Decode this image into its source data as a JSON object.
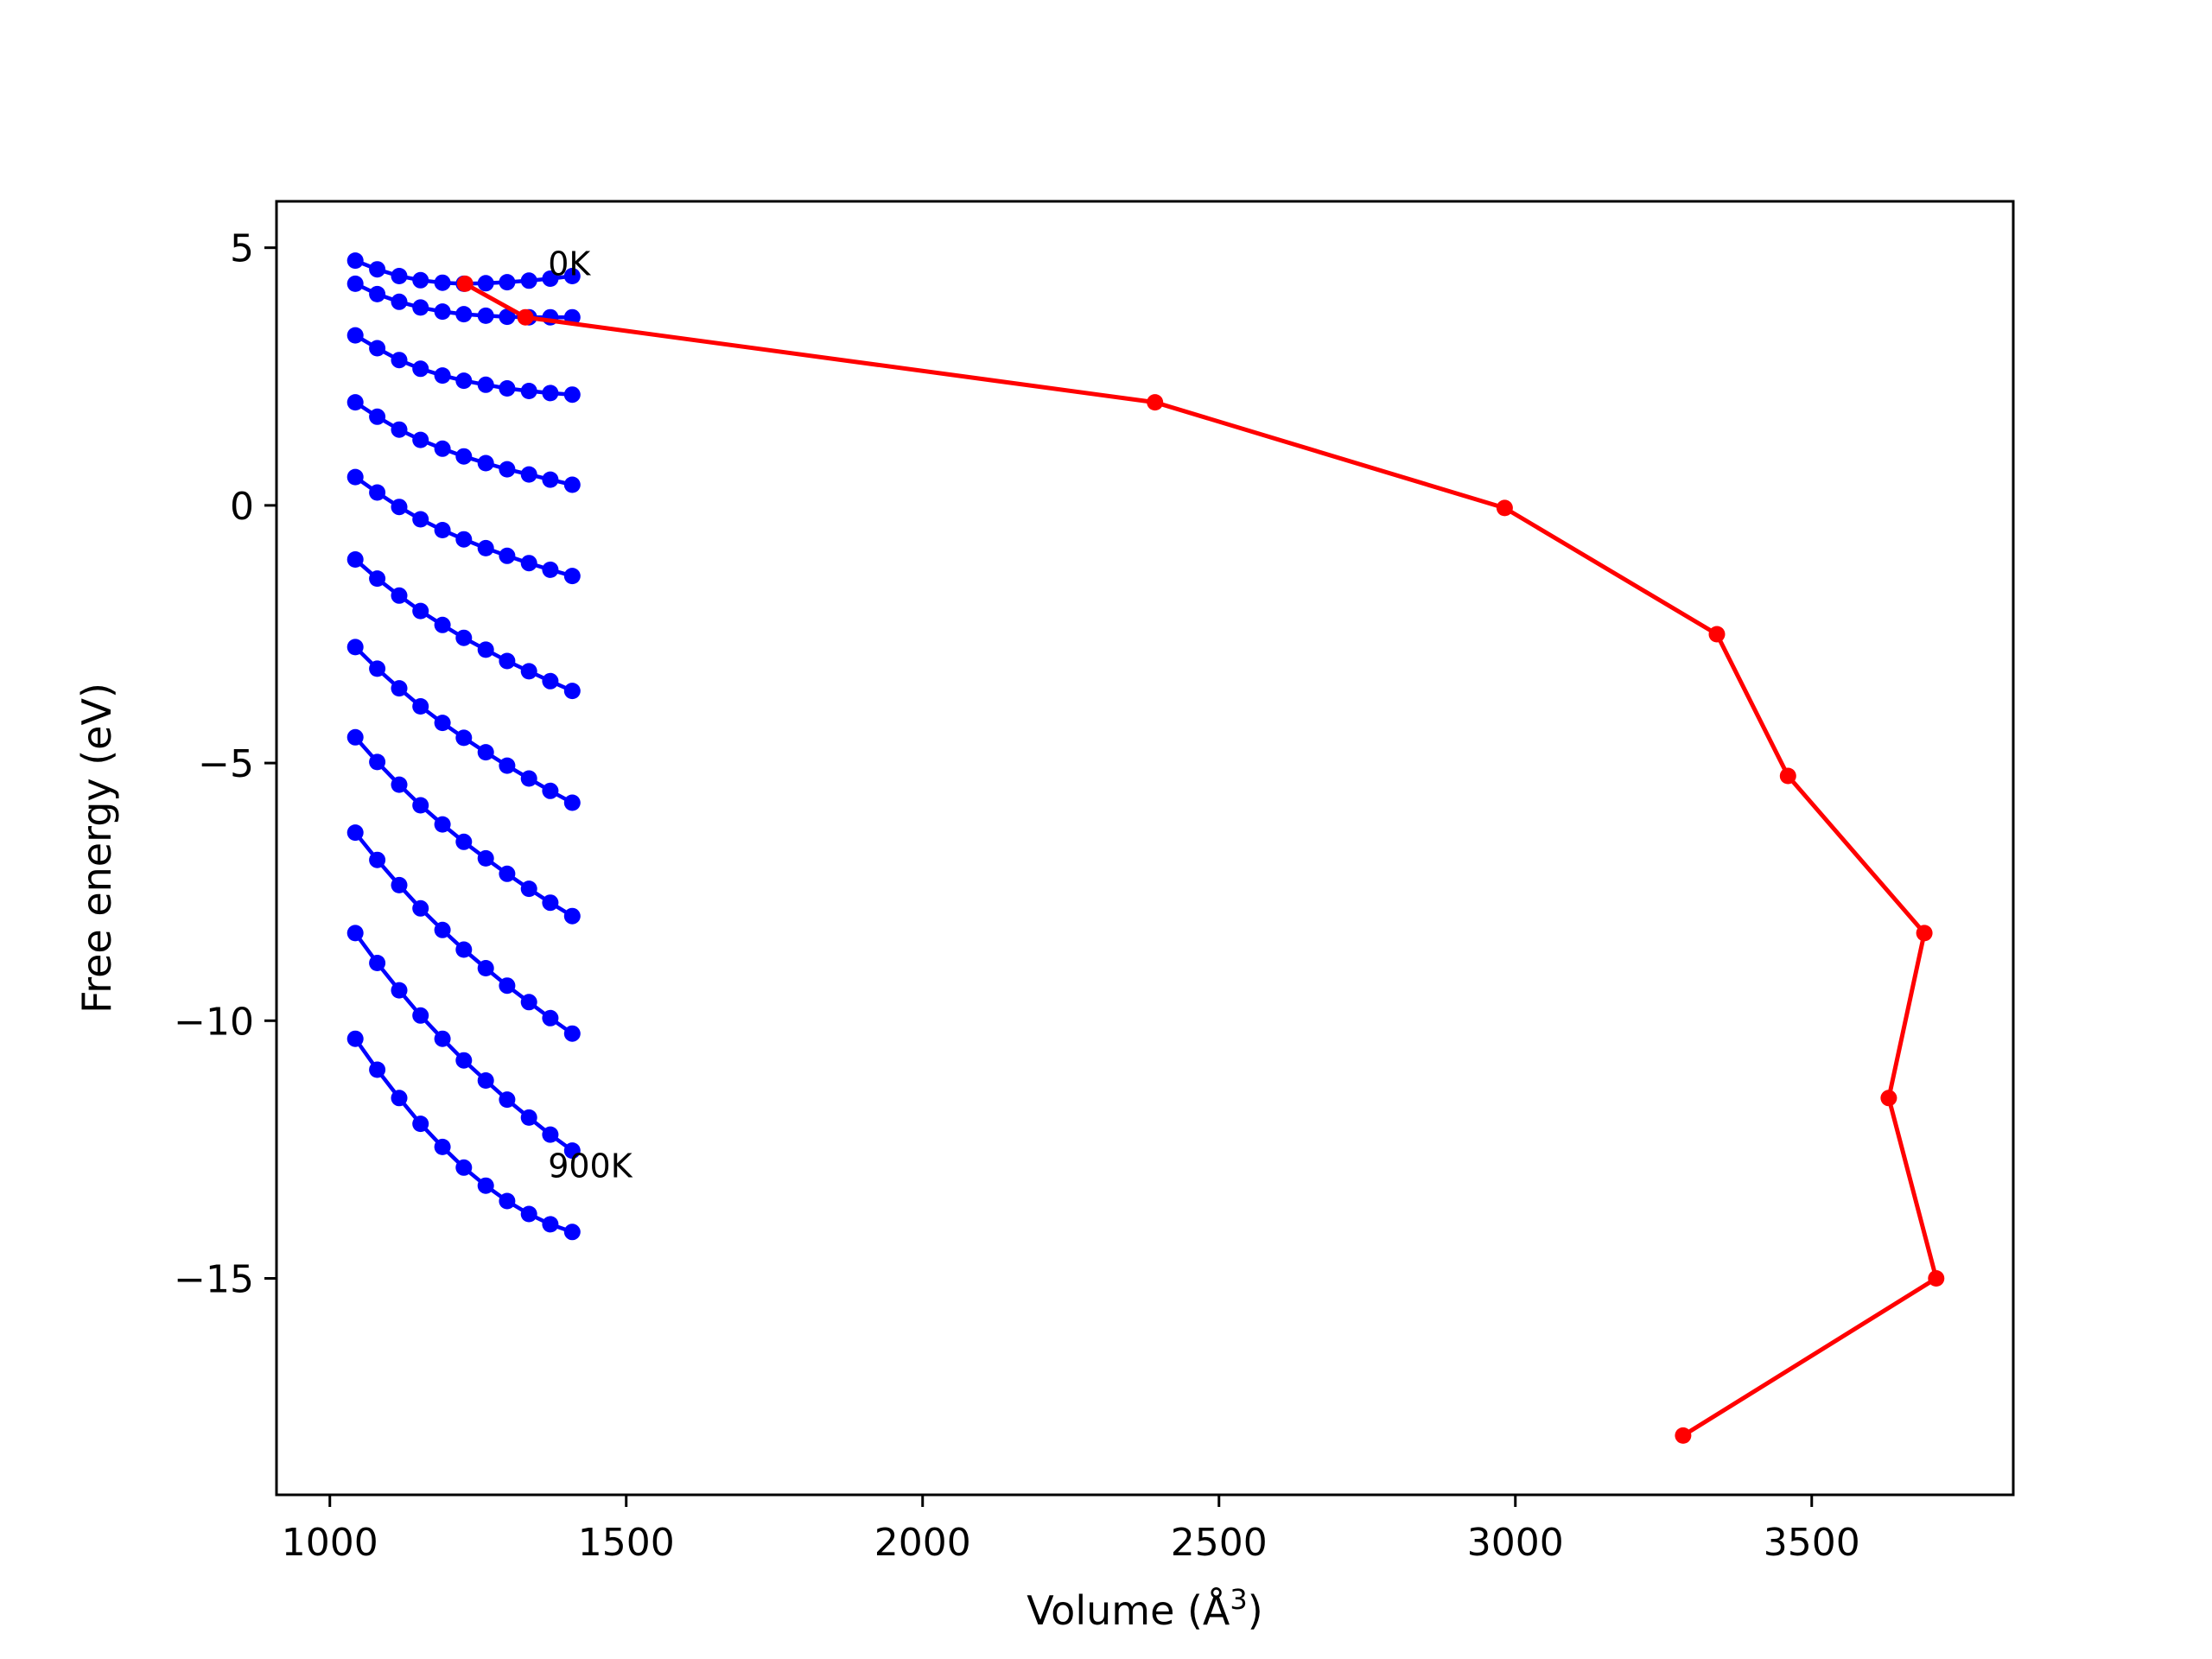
{
  "chart_data": {
    "type": "line",
    "xlabel": "Volume (Å",
    "xlabel_sup": "3",
    "xlabel_close": ")",
    "ylabel": "Free energy (eV)",
    "xlim": [
      910,
      3840
    ],
    "ylim": [
      -19.2,
      5.9
    ],
    "xticks": [
      1000,
      1500,
      2000,
      2500,
      3000,
      3500
    ],
    "xtick_labels": [
      "1000",
      "1500",
      "2000",
      "2500",
      "3000",
      "3500"
    ],
    "yticks": [
      5,
      0,
      -5,
      -10,
      -15
    ],
    "ytick_labels": [
      "5",
      "0",
      "−5",
      "−10",
      "−15"
    ],
    "grid": false,
    "colors": {
      "curves": "#0000ff",
      "minima": "#ff0000"
    },
    "x": [
      1043,
      1080,
      1117,
      1153,
      1190,
      1226,
      1263,
      1299,
      1336,
      1372,
      1409
    ],
    "series": [
      {
        "values": [
          4.75,
          4.58,
          4.45,
          4.37,
          4.32,
          4.3,
          4.31,
          4.33,
          4.36,
          4.4,
          4.45
        ]
      },
      {
        "values": [
          4.3,
          4.1,
          3.95,
          3.84,
          3.76,
          3.71,
          3.68,
          3.66,
          3.65,
          3.65,
          3.65
        ]
      },
      {
        "values": [
          3.3,
          3.05,
          2.82,
          2.65,
          2.52,
          2.42,
          2.34,
          2.27,
          2.22,
          2.18,
          2.15
        ]
      },
      {
        "values": [
          2.0,
          1.72,
          1.47,
          1.27,
          1.1,
          0.95,
          0.82,
          0.7,
          0.6,
          0.5,
          0.4
        ]
      },
      {
        "values": [
          0.55,
          0.25,
          -0.03,
          -0.27,
          -0.48,
          -0.66,
          -0.83,
          -0.98,
          -1.12,
          -1.25,
          -1.37
        ]
      },
      {
        "values": [
          -1.05,
          -1.42,
          -1.75,
          -2.05,
          -2.32,
          -2.57,
          -2.8,
          -3.02,
          -3.22,
          -3.41,
          -3.6
        ]
      },
      {
        "values": [
          -2.75,
          -3.17,
          -3.55,
          -3.9,
          -4.22,
          -4.51,
          -4.79,
          -5.05,
          -5.3,
          -5.54,
          -5.77
        ]
      },
      {
        "values": [
          -4.5,
          -4.98,
          -5.42,
          -5.82,
          -6.19,
          -6.53,
          -6.85,
          -7.15,
          -7.44,
          -7.71,
          -7.97
        ]
      },
      {
        "values": [
          -6.35,
          -6.88,
          -7.37,
          -7.82,
          -8.24,
          -8.62,
          -8.98,
          -9.32,
          -9.64,
          -9.95,
          -10.25
        ]
      },
      {
        "values": [
          -8.3,
          -8.88,
          -9.41,
          -9.9,
          -10.35,
          -10.77,
          -11.16,
          -11.53,
          -11.88,
          -12.21,
          -12.52
        ]
      },
      {
        "values": [
          -10.35,
          -10.95,
          -11.5,
          -12.0,
          -12.45,
          -12.85,
          -13.2,
          -13.5,
          -13.75,
          -13.95,
          -14.1
        ]
      }
    ],
    "minima_line": {
      "x": [
        1228,
        1330,
        2392,
        2982,
        3340,
        3460,
        3690,
        3630,
        3710,
        3283
      ],
      "y": [
        4.3,
        3.65,
        2.0,
        -0.05,
        -2.5,
        -5.25,
        -8.3,
        -11.5,
        -15.0,
        -18.05
      ]
    },
    "annotations": [
      {
        "text": "0K",
        "x": 1368,
        "y": 4.7
      },
      {
        "text": "900K",
        "x": 1368,
        "y": -12.8
      }
    ]
  }
}
